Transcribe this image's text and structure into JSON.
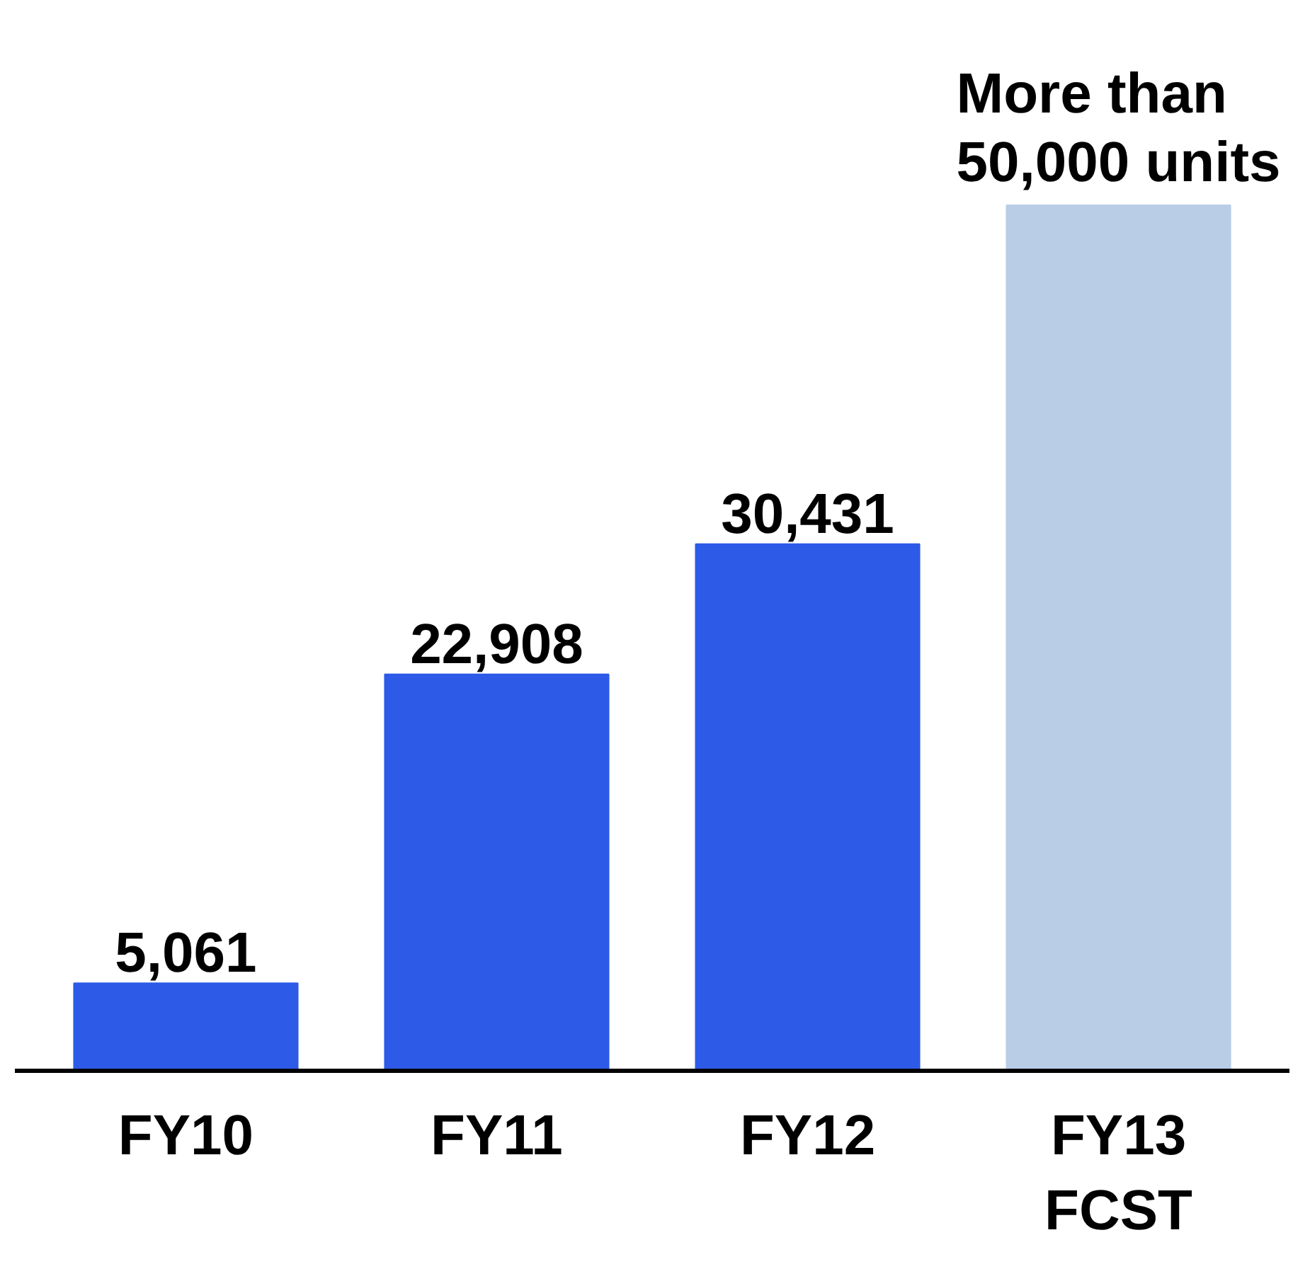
{
  "chart_data": {
    "type": "bar",
    "categories": [
      "FY10",
      "FY11",
      "FY12",
      "FY13 FCST"
    ],
    "values": [
      5061,
      22908,
      30431,
      50000
    ],
    "colors": [
      "#2d5be8",
      "#2d5be8",
      "#2d5be8",
      "#b9cde6"
    ],
    "value_labels": [
      "5,061",
      "22,908",
      "30,431",
      "More than 50,000 units"
    ],
    "grid": false
  }
}
